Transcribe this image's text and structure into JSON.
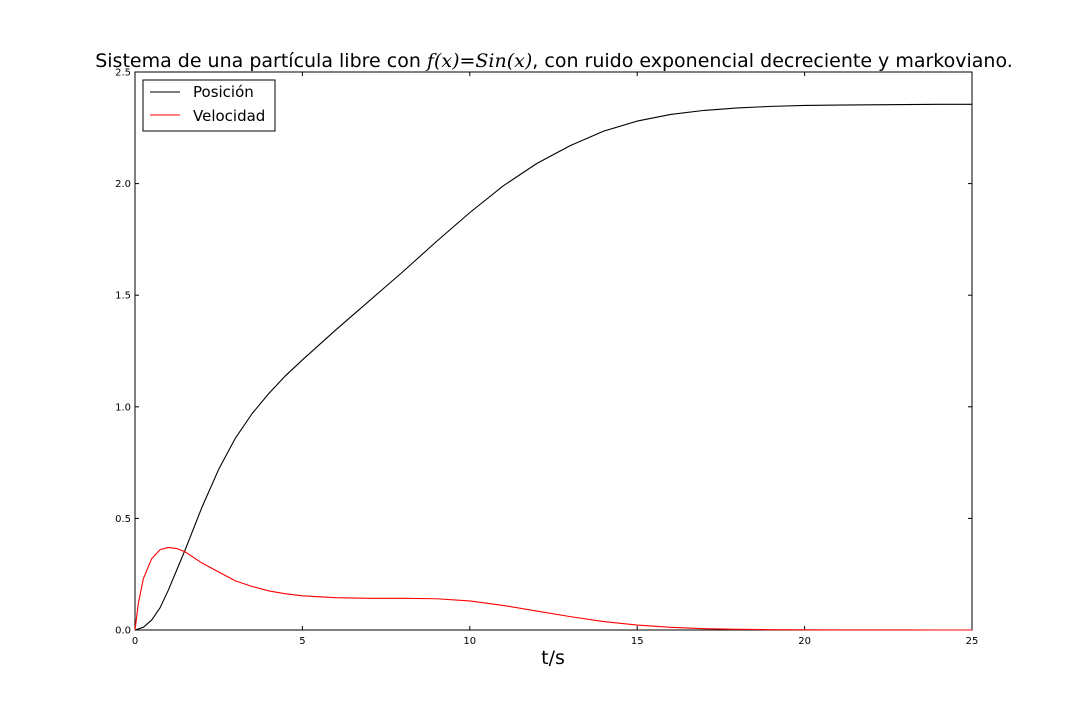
{
  "chart_data": {
    "type": "line",
    "title": {
      "prefix": "Sistema de una partícula libre con ",
      "math": "f(x)=Sin(x)",
      "suffix": ", con ruido exponencial decreciente y markoviano."
    },
    "xlabel": "t/s",
    "ylabel": "",
    "xlim": [
      0,
      25
    ],
    "ylim": [
      0,
      2.5
    ],
    "xticks": [
      0,
      5,
      10,
      15,
      20,
      25
    ],
    "yticks": [
      0.0,
      0.5,
      1.0,
      1.5,
      2.0,
      2.5
    ],
    "xtick_labels": [
      "0",
      "5",
      "10",
      "15",
      "20",
      "25"
    ],
    "ytick_labels": [
      "0.0",
      "0.5",
      "1.0",
      "1.5",
      "2.0",
      "2.5"
    ],
    "grid": false,
    "legend_position": "top-left",
    "series": [
      {
        "name": "Posición",
        "color": "#000000",
        "x": [
          0,
          0.25,
          0.5,
          0.75,
          1,
          1.25,
          1.5,
          2,
          2.5,
          3,
          3.5,
          4,
          4.5,
          5,
          6,
          7,
          8,
          9,
          10,
          11,
          12,
          13,
          14,
          15,
          16,
          17,
          18,
          19,
          20,
          21,
          22,
          23,
          24,
          25
        ],
        "y": [
          0,
          0.012,
          0.045,
          0.1,
          0.18,
          0.27,
          0.36,
          0.55,
          0.72,
          0.86,
          0.97,
          1.06,
          1.14,
          1.21,
          1.345,
          1.475,
          1.605,
          1.74,
          1.87,
          1.99,
          2.09,
          2.17,
          2.235,
          2.28,
          2.31,
          2.328,
          2.339,
          2.346,
          2.35,
          2.352,
          2.353,
          2.354,
          2.355,
          2.355
        ]
      },
      {
        "name": "Velocidad",
        "color": "#ff0000",
        "x": [
          0,
          0.1,
          0.25,
          0.5,
          0.75,
          1,
          1.25,
          1.5,
          2,
          2.5,
          3,
          3.5,
          4,
          4.5,
          5,
          6,
          7,
          8,
          9,
          10,
          11,
          12,
          13,
          14,
          15,
          16,
          17,
          18,
          19,
          20,
          21,
          22,
          23,
          24,
          25
        ],
        "y": [
          0,
          0.12,
          0.23,
          0.32,
          0.36,
          0.37,
          0.365,
          0.35,
          0.3,
          0.26,
          0.22,
          0.195,
          0.175,
          0.162,
          0.153,
          0.145,
          0.142,
          0.142,
          0.14,
          0.13,
          0.11,
          0.085,
          0.06,
          0.038,
          0.022,
          0.012,
          0.006,
          0.003,
          0.0015,
          0.0008,
          0.0004,
          0.0002,
          0.0001,
          0.0,
          0.0
        ]
      }
    ]
  }
}
